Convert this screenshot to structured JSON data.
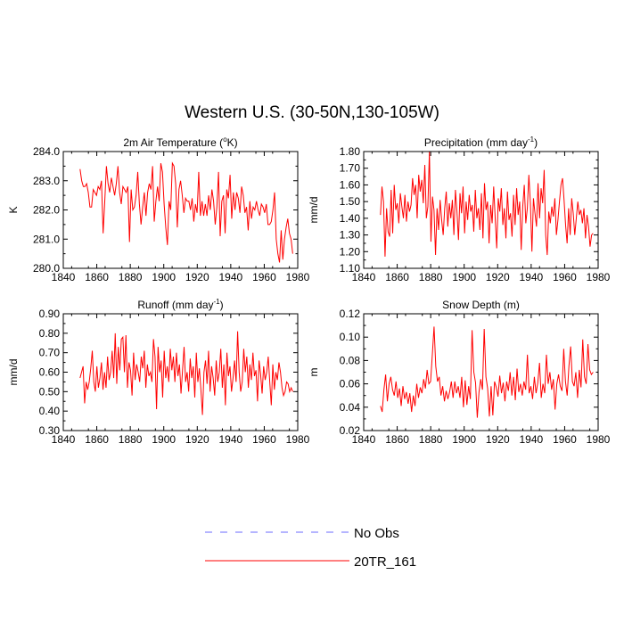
{
  "figure": {
    "title": "Western U.S. (30-50N,130-105W)"
  },
  "legend": {
    "items": [
      {
        "label": "No Obs",
        "color": "#6b6bff",
        "dash": "dashed"
      },
      {
        "label": "20TR_161",
        "color": "#ff0000",
        "dash": "solid"
      }
    ]
  },
  "chart_data": [
    {
      "type": "line",
      "title_main": "2m Air Temperature (",
      "title_sup": "o",
      "title_tail": "K)",
      "ylabel": "K",
      "xlim": [
        1840,
        1980
      ],
      "ylim": [
        280.0,
        284.0
      ],
      "xticks": [
        1840,
        1860,
        1880,
        1900,
        1920,
        1940,
        1960,
        1980
      ],
      "yticks": [
        280.0,
        281.0,
        282.0,
        283.0,
        284.0
      ],
      "ytick_labels": [
        "280.0",
        "281.0",
        "282.0",
        "283.0",
        "284.0"
      ],
      "x_start": 1850,
      "series": [
        {
          "name": "20TR_161",
          "color": "#ff0000",
          "values": [
            283.4,
            283.0,
            282.8,
            282.8,
            282.9,
            282.6,
            282.1,
            282.1,
            282.7,
            282.6,
            282.5,
            282.8,
            282.7,
            283.0,
            281.2,
            282.3,
            283.5,
            282.9,
            282.6,
            283.1,
            282.8,
            282.5,
            282.9,
            283.5,
            282.6,
            282.2,
            282.8,
            282.7,
            282.6,
            282.8,
            280.9,
            282.7,
            282.0,
            282.1,
            282.5,
            283.3,
            282.2,
            281.5,
            282.1,
            282.6,
            281.8,
            282.6,
            282.9,
            282.7,
            283.5,
            281.6,
            282.3,
            282.8,
            282.3,
            283.6,
            283.3,
            282.2,
            281.4,
            280.8,
            282.3,
            282.0,
            283.6,
            283.5,
            282.9,
            281.4,
            282.7,
            283.0,
            282.5,
            281.9,
            282.4,
            282.3,
            282.3,
            282.0,
            282.4,
            281.6,
            282.2,
            281.9,
            283.3,
            281.8,
            282.3,
            281.8,
            282.2,
            281.8,
            282.5,
            282.0,
            282.7,
            282.3,
            281.5,
            282.1,
            283.3,
            281.1,
            282.3,
            282.5,
            281.2,
            282.7,
            282.4,
            283.2,
            281.7,
            282.6,
            282.0,
            282.6,
            282.4,
            281.9,
            282.8,
            282.5,
            281.9,
            282.1,
            281.3,
            282.3,
            281.7,
            282.1,
            282.0,
            282.3,
            282.0,
            281.8,
            282.2,
            282.1,
            281.9,
            282.2,
            281.5,
            281.5,
            281.6,
            282.0,
            282.6,
            281.0,
            280.5,
            280.2,
            281.3,
            280.3,
            281.0,
            281.4,
            281.7,
            281.2,
            281.0,
            280.5
          ]
        }
      ]
    },
    {
      "type": "line",
      "title_main": "Precipitation (mm day",
      "title_sup": "-1",
      "title_tail": ")",
      "ylabel": "mm/d",
      "xlim": [
        1840,
        1980
      ],
      "ylim": [
        1.1,
        1.8
      ],
      "xticks": [
        1840,
        1860,
        1880,
        1900,
        1920,
        1940,
        1960,
        1980
      ],
      "yticks": [
        1.1,
        1.2,
        1.3,
        1.4,
        1.5,
        1.6,
        1.7,
        1.8
      ],
      "ytick_labels": [
        "1.10",
        "1.20",
        "1.30",
        "1.40",
        "1.50",
        "1.60",
        "1.70",
        "1.80"
      ],
      "x_start": 1850,
      "series": [
        {
          "name": "20TR_161",
          "color": "#ff0000",
          "values": [
            1.42,
            1.59,
            1.5,
            1.17,
            1.46,
            1.32,
            1.29,
            1.57,
            1.31,
            1.6,
            1.45,
            1.49,
            1.37,
            1.55,
            1.47,
            1.4,
            1.54,
            1.38,
            1.5,
            1.44,
            1.48,
            1.64,
            1.54,
            1.6,
            1.4,
            1.66,
            1.56,
            1.63,
            1.49,
            1.72,
            1.4,
            1.47,
            1.8,
            1.26,
            1.53,
            1.45,
            1.18,
            1.46,
            1.33,
            1.51,
            1.39,
            1.3,
            1.46,
            1.56,
            1.35,
            1.49,
            1.4,
            1.51,
            1.3,
            1.57,
            1.44,
            1.27,
            1.55,
            1.43,
            1.59,
            1.31,
            1.5,
            1.39,
            1.54,
            1.44,
            1.48,
            1.32,
            1.57,
            1.4,
            1.46,
            1.33,
            1.55,
            1.28,
            1.61,
            1.45,
            1.5,
            1.25,
            1.48,
            1.37,
            1.59,
            1.4,
            1.22,
            1.52,
            1.44,
            1.58,
            1.36,
            1.46,
            1.28,
            1.56,
            1.39,
            1.43,
            1.29,
            1.54,
            1.36,
            1.58,
            1.42,
            1.5,
            1.21,
            1.47,
            1.6,
            1.37,
            1.46,
            1.66,
            1.49,
            1.2,
            1.52,
            1.43,
            1.35,
            1.61,
            1.4,
            1.58,
            1.49,
            1.69,
            1.3,
            1.18,
            1.44,
            1.37,
            1.47,
            1.41,
            1.52,
            1.3,
            1.39,
            1.5,
            1.6,
            1.64,
            1.51,
            1.36,
            1.25,
            1.46,
            1.3,
            1.52,
            1.43,
            1.3,
            1.4,
            1.5,
            1.42,
            1.45,
            1.37,
            1.46,
            1.28,
            1.42,
            1.35,
            1.23,
            1.3,
            1.31
          ]
        }
      ]
    },
    {
      "type": "line",
      "title_main": "Runoff (mm day",
      "title_sup": "-1",
      "title_tail": ")",
      "ylabel": "mm/d",
      "xlim": [
        1840,
        1980
      ],
      "ylim": [
        0.3,
        0.9
      ],
      "xticks": [
        1840,
        1860,
        1880,
        1900,
        1920,
        1940,
        1960,
        1980
      ],
      "yticks": [
        0.3,
        0.4,
        0.5,
        0.6,
        0.7,
        0.8,
        0.9
      ],
      "ytick_labels": [
        "0.30",
        "0.40",
        "0.50",
        "0.60",
        "0.70",
        "0.80",
        "0.90"
      ],
      "x_start": 1850,
      "series": [
        {
          "name": "20TR_161",
          "color": "#ff0000",
          "values": [
            0.57,
            0.6,
            0.63,
            0.44,
            0.55,
            0.51,
            0.55,
            0.62,
            0.71,
            0.55,
            0.5,
            0.63,
            0.52,
            0.57,
            0.65,
            0.51,
            0.6,
            0.52,
            0.68,
            0.56,
            0.6,
            0.71,
            0.57,
            0.8,
            0.54,
            0.73,
            0.61,
            0.77,
            0.78,
            0.6,
            0.79,
            0.52,
            0.65,
            0.61,
            0.48,
            0.7,
            0.56,
            0.64,
            0.6,
            0.55,
            0.68,
            0.62,
            0.71,
            0.52,
            0.64,
            0.58,
            0.6,
            0.55,
            0.77,
            0.68,
            0.41,
            0.73,
            0.6,
            0.66,
            0.47,
            0.71,
            0.57,
            0.63,
            0.55,
            0.72,
            0.61,
            0.68,
            0.55,
            0.7,
            0.58,
            0.64,
            0.49,
            0.61,
            0.73,
            0.55,
            0.6,
            0.5,
            0.67,
            0.57,
            0.63,
            0.47,
            0.7,
            0.55,
            0.62,
            0.51,
            0.38,
            0.6,
            0.66,
            0.54,
            0.71,
            0.5,
            0.63,
            0.57,
            0.48,
            0.66,
            0.55,
            0.6,
            0.72,
            0.52,
            0.64,
            0.43,
            0.7,
            0.58,
            0.63,
            0.5,
            0.57,
            0.66,
            0.55,
            0.81,
            0.6,
            0.5,
            0.55,
            0.72,
            0.6,
            0.68,
            0.52,
            0.64,
            0.56,
            0.7,
            0.58,
            0.61,
            0.45,
            0.66,
            0.59,
            0.49,
            0.63,
            0.56,
            0.6,
            0.68,
            0.55,
            0.43,
            0.64,
            0.51,
            0.6,
            0.56,
            0.65,
            0.6,
            0.52,
            0.48,
            0.5,
            0.55,
            0.54,
            0.5,
            0.52,
            0.5
          ]
        }
      ]
    },
    {
      "type": "line",
      "title_main": "Snow Depth (m)",
      "title_sup": "",
      "title_tail": "",
      "ylabel": "m",
      "xlim": [
        1840,
        1980
      ],
      "ylim": [
        0.02,
        0.12
      ],
      "xticks": [
        1840,
        1860,
        1880,
        1900,
        1920,
        1940,
        1960,
        1980
      ],
      "yticks": [
        0.02,
        0.04,
        0.06,
        0.08,
        0.1,
        0.12
      ],
      "ytick_labels": [
        "0.02",
        "0.04",
        "0.06",
        "0.08",
        "0.10",
        "0.12"
      ],
      "x_start": 1850,
      "series": [
        {
          "name": "20TR_161",
          "color": "#ff0000",
          "values": [
            0.041,
            0.036,
            0.055,
            0.068,
            0.045,
            0.06,
            0.066,
            0.055,
            0.05,
            0.062,
            0.048,
            0.056,
            0.041,
            0.058,
            0.047,
            0.053,
            0.043,
            0.052,
            0.036,
            0.05,
            0.041,
            0.06,
            0.048,
            0.057,
            0.052,
            0.064,
            0.056,
            0.072,
            0.06,
            0.062,
            0.085,
            0.109,
            0.075,
            0.062,
            0.066,
            0.05,
            0.058,
            0.045,
            0.054,
            0.047,
            0.053,
            0.062,
            0.048,
            0.062,
            0.052,
            0.058,
            0.048,
            0.066,
            0.04,
            0.063,
            0.042,
            0.058,
            0.047,
            0.106,
            0.07,
            0.061,
            0.031,
            0.053,
            0.064,
            0.055,
            0.107,
            0.066,
            0.056,
            0.032,
            0.058,
            0.033,
            0.062,
            0.057,
            0.049,
            0.067,
            0.052,
            0.061,
            0.045,
            0.062,
            0.054,
            0.07,
            0.05,
            0.066,
            0.046,
            0.073,
            0.053,
            0.06,
            0.05,
            0.062,
            0.055,
            0.085,
            0.052,
            0.058,
            0.047,
            0.066,
            0.052,
            0.061,
            0.078,
            0.048,
            0.06,
            0.052,
            0.085,
            0.06,
            0.07,
            0.055,
            0.064,
            0.038,
            0.06,
            0.068,
            0.058,
            0.054,
            0.09,
            0.062,
            0.05,
            0.075,
            0.092,
            0.062,
            0.058,
            0.07,
            0.048,
            0.072,
            0.057,
            0.098,
            0.066,
            0.06,
            0.094,
            0.072,
            0.068,
            0.07
          ]
        }
      ]
    }
  ]
}
